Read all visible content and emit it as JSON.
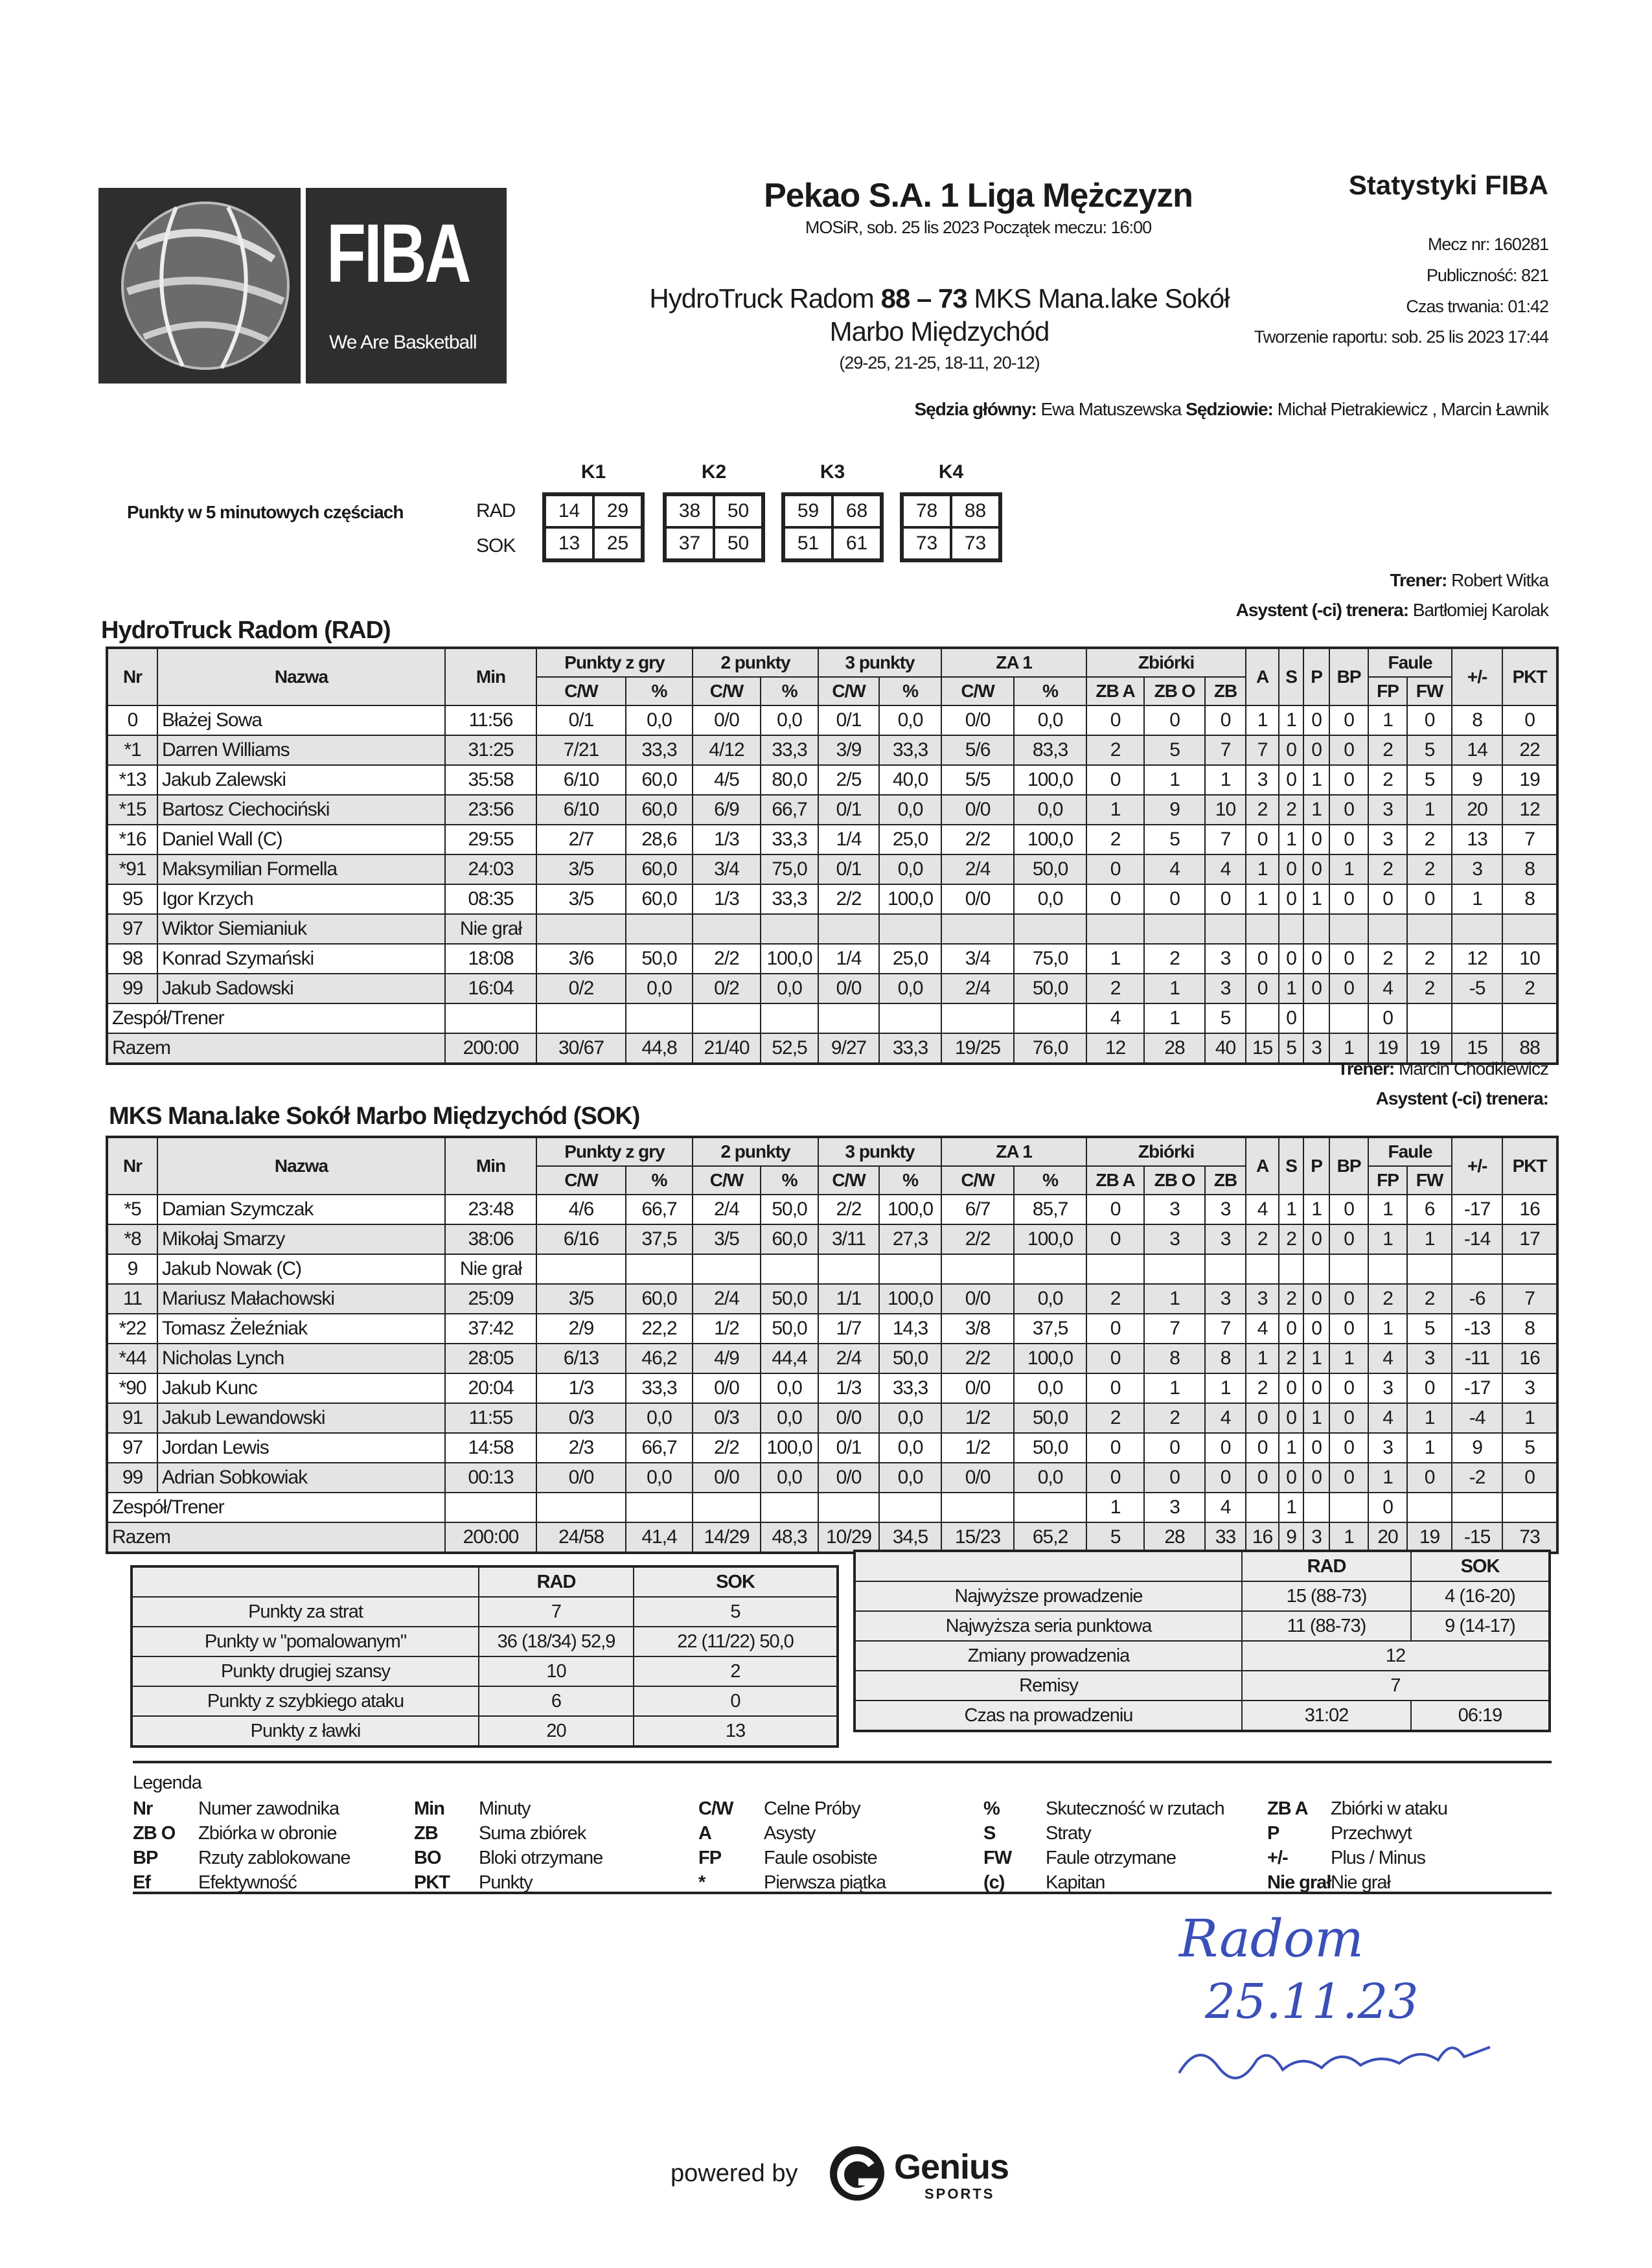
{
  "logo": {
    "brand": "FIBA",
    "tagline": "We Are Basketball"
  },
  "header": {
    "league": "Pekao S.A. 1 Liga Mężczyzn",
    "venue_line": "MOSiR, sob. 25 lis 2023 Początek meczu: 16:00",
    "home_team": "HydroTruck Radom",
    "score": "88 – 73",
    "away_team_part1": "MKS Mana.lake Sokół",
    "away_team_part2": "Marbo Międzychód",
    "quarters": "(29-25, 21-25, 18-11, 20-12)",
    "stats_title": "Statystyki FIBA",
    "match_no": "Mecz nr: 160281",
    "attendance": "Publiczność: 821",
    "duration": "Czas trwania: 01:42",
    "report_created": "Tworzenie raportu: sob. 25 lis 2023 17:44",
    "head_ref_label": "Sędzia główny:",
    "head_ref": "Ewa Matuszewska",
    "refs_label": "Sędziowie:",
    "refs": "Michał Pietrakiewicz , Marcin Ławnik"
  },
  "periods": {
    "label": "Punkty w 5 minutowych częściach",
    "teams": [
      "RAD",
      "SOK"
    ],
    "quarters": [
      {
        "name": "K1",
        "RAD": [
          "14",
          "29"
        ],
        "SOK": [
          "13",
          "25"
        ]
      },
      {
        "name": "K2",
        "RAD": [
          "38",
          "50"
        ],
        "SOK": [
          "37",
          "50"
        ]
      },
      {
        "name": "K3",
        "RAD": [
          "59",
          "68"
        ],
        "SOK": [
          "51",
          "61"
        ]
      },
      {
        "name": "K4",
        "RAD": [
          "78",
          "88"
        ],
        "SOK": [
          "73",
          "73"
        ]
      }
    ]
  },
  "columns": {
    "top": [
      "Nr",
      "Nazwa",
      "Min",
      "Punkty z gry",
      "2 punkty",
      "3 punkty",
      "ZA 1",
      "Zbiórki",
      "A",
      "S",
      "P",
      "BP",
      "Faule",
      "+/-",
      "PKT"
    ],
    "sub": [
      "C/W",
      "%",
      "C/W",
      "%",
      "C/W",
      "%",
      "C/W",
      "%",
      "ZB A",
      "ZB O",
      "ZB",
      "FP",
      "FW"
    ]
  },
  "teams": [
    {
      "name": "HydroTruck Radom (RAD)",
      "coach_label": "Trener:",
      "coach": "Robert Witka",
      "assistant_label": "Asystent (-ci) trenera:",
      "assistant": "Bartłomiej Karolak",
      "players": [
        [
          "0",
          "Błażej Sowa",
          "11:56",
          "0/1",
          "0,0",
          "0/0",
          "0,0",
          "0/1",
          "0,0",
          "0/0",
          "0,0",
          "0",
          "0",
          "0",
          "1",
          "1",
          "0",
          "0",
          "1",
          "0",
          "8",
          "0"
        ],
        [
          "*1",
          "Darren Williams",
          "31:25",
          "7/21",
          "33,3",
          "4/12",
          "33,3",
          "3/9",
          "33,3",
          "5/6",
          "83,3",
          "2",
          "5",
          "7",
          "7",
          "0",
          "0",
          "0",
          "2",
          "5",
          "14",
          "22"
        ],
        [
          "*13",
          "Jakub Zalewski",
          "35:58",
          "6/10",
          "60,0",
          "4/5",
          "80,0",
          "2/5",
          "40,0",
          "5/5",
          "100,0",
          "0",
          "1",
          "1",
          "3",
          "0",
          "1",
          "0",
          "2",
          "5",
          "9",
          "19"
        ],
        [
          "*15",
          "Bartosz Ciechociński",
          "23:56",
          "6/10",
          "60,0",
          "6/9",
          "66,7",
          "0/1",
          "0,0",
          "0/0",
          "0,0",
          "1",
          "9",
          "10",
          "2",
          "2",
          "1",
          "0",
          "3",
          "1",
          "20",
          "12"
        ],
        [
          "*16",
          "Daniel Wall (C)",
          "29:55",
          "2/7",
          "28,6",
          "1/3",
          "33,3",
          "1/4",
          "25,0",
          "2/2",
          "100,0",
          "2",
          "5",
          "7",
          "0",
          "1",
          "0",
          "0",
          "3",
          "2",
          "13",
          "7"
        ],
        [
          "*91",
          "Maksymilian Formella",
          "24:03",
          "3/5",
          "60,0",
          "3/4",
          "75,0",
          "0/1",
          "0,0",
          "2/4",
          "50,0",
          "0",
          "4",
          "4",
          "1",
          "0",
          "0",
          "1",
          "2",
          "2",
          "3",
          "8"
        ],
        [
          "95",
          "Igor Krzych",
          "08:35",
          "3/5",
          "60,0",
          "1/3",
          "33,3",
          "2/2",
          "100,0",
          "0/0",
          "0,0",
          "0",
          "0",
          "0",
          "1",
          "0",
          "1",
          "0",
          "0",
          "0",
          "1",
          "8"
        ],
        [
          "97",
          "Wiktor Siemianiuk",
          "Nie grał",
          "",
          "",
          "",
          "",
          "",
          "",
          "",
          "",
          "",
          "",
          "",
          "",
          "",
          "",
          "",
          "",
          "",
          "",
          ""
        ],
        [
          "98",
          "Konrad Szymański",
          "18:08",
          "3/6",
          "50,0",
          "2/2",
          "100,0",
          "1/4",
          "25,0",
          "3/4",
          "75,0",
          "1",
          "2",
          "3",
          "0",
          "0",
          "0",
          "0",
          "2",
          "2",
          "12",
          "10"
        ],
        [
          "99",
          "Jakub Sadowski",
          "16:04",
          "0/2",
          "0,0",
          "0/2",
          "0,0",
          "0/0",
          "0,0",
          "2/4",
          "50,0",
          "2",
          "1",
          "3",
          "0",
          "1",
          "0",
          "0",
          "4",
          "2",
          "-5",
          "2"
        ]
      ],
      "team_row_label": "Zespół/Trener",
      "team_row": [
        "",
        "",
        "",
        "",
        "",
        "",
        "",
        "",
        "",
        "4",
        "1",
        "5",
        "",
        "0",
        "",
        "",
        "0",
        "",
        "",
        ""
      ],
      "total_label": "Razem",
      "total": [
        "200:00",
        "30/67",
        "44,8",
        "21/40",
        "52,5",
        "9/27",
        "33,3",
        "19/25",
        "76,0",
        "12",
        "28",
        "40",
        "15",
        "5",
        "3",
        "1",
        "19",
        "19",
        "15",
        "88"
      ]
    },
    {
      "name": "MKS Mana.lake Sokół Marbo Międzychód (SOK)",
      "coach_label": "Trener:",
      "coach": "Marcin Chodkiewicz",
      "assistant_label": "Asystent (-ci) trenera:",
      "assistant": "",
      "players": [
        [
          "*5",
          "Damian Szymczak",
          "23:48",
          "4/6",
          "66,7",
          "2/4",
          "50,0",
          "2/2",
          "100,0",
          "6/7",
          "85,7",
          "0",
          "3",
          "3",
          "4",
          "1",
          "1",
          "0",
          "1",
          "6",
          "-17",
          "16"
        ],
        [
          "*8",
          "Mikołaj Smarzy",
          "38:06",
          "6/16",
          "37,5",
          "3/5",
          "60,0",
          "3/11",
          "27,3",
          "2/2",
          "100,0",
          "0",
          "3",
          "3",
          "2",
          "2",
          "0",
          "0",
          "1",
          "1",
          "-14",
          "17"
        ],
        [
          "9",
          "Jakub Nowak (C)",
          "Nie grał",
          "",
          "",
          "",
          "",
          "",
          "",
          "",
          "",
          "",
          "",
          "",
          "",
          "",
          "",
          "",
          "",
          "",
          "",
          ""
        ],
        [
          "11",
          "Mariusz Małachowski",
          "25:09",
          "3/5",
          "60,0",
          "2/4",
          "50,0",
          "1/1",
          "100,0",
          "0/0",
          "0,0",
          "2",
          "1",
          "3",
          "3",
          "2",
          "0",
          "0",
          "2",
          "2",
          "-6",
          "7"
        ],
        [
          "*22",
          "Tomasz Żeleźniak",
          "37:42",
          "2/9",
          "22,2",
          "1/2",
          "50,0",
          "1/7",
          "14,3",
          "3/8",
          "37,5",
          "0",
          "7",
          "7",
          "4",
          "0",
          "0",
          "0",
          "1",
          "5",
          "-13",
          "8"
        ],
        [
          "*44",
          "Nicholas Lynch",
          "28:05",
          "6/13",
          "46,2",
          "4/9",
          "44,4",
          "2/4",
          "50,0",
          "2/2",
          "100,0",
          "0",
          "8",
          "8",
          "1",
          "2",
          "1",
          "1",
          "4",
          "3",
          "-11",
          "16"
        ],
        [
          "*90",
          "Jakub Kunc",
          "20:04",
          "1/3",
          "33,3",
          "0/0",
          "0,0",
          "1/3",
          "33,3",
          "0/0",
          "0,0",
          "0",
          "1",
          "1",
          "2",
          "0",
          "0",
          "0",
          "3",
          "0",
          "-17",
          "3"
        ],
        [
          "91",
          "Jakub Lewandowski",
          "11:55",
          "0/3",
          "0,0",
          "0/3",
          "0,0",
          "0/0",
          "0,0",
          "1/2",
          "50,0",
          "2",
          "2",
          "4",
          "0",
          "0",
          "1",
          "0",
          "4",
          "1",
          "-4",
          "1"
        ],
        [
          "97",
          "Jordan Lewis",
          "14:58",
          "2/3",
          "66,7",
          "2/2",
          "100,0",
          "0/1",
          "0,0",
          "1/2",
          "50,0",
          "0",
          "0",
          "0",
          "0",
          "1",
          "0",
          "0",
          "3",
          "1",
          "9",
          "5"
        ],
        [
          "99",
          "Adrian Sobkowiak",
          "00:13",
          "0/0",
          "0,0",
          "0/0",
          "0,0",
          "0/0",
          "0,0",
          "0/0",
          "0,0",
          "0",
          "0",
          "0",
          "0",
          "0",
          "0",
          "0",
          "1",
          "0",
          "-2",
          "0"
        ]
      ],
      "team_row_label": "Zespół/Trener",
      "team_row": [
        "",
        "",
        "",
        "",
        "",
        "",
        "",
        "",
        "",
        "1",
        "3",
        "4",
        "",
        "1",
        "",
        "",
        "0",
        "",
        "",
        ""
      ],
      "total_label": "Razem",
      "total": [
        "200:00",
        "24/58",
        "41,4",
        "14/29",
        "48,3",
        "10/29",
        "34,5",
        "15/23",
        "65,2",
        "5",
        "28",
        "33",
        "16",
        "9",
        "3",
        "1",
        "20",
        "19",
        "-15",
        "73"
      ]
    }
  ],
  "summary_left": {
    "headers": [
      "",
      "RAD",
      "SOK"
    ],
    "rows": [
      [
        "Punkty za strat",
        "7",
        "5"
      ],
      [
        "Punkty w \"pomalowanym\"",
        "36 (18/34) 52,9",
        "22 (11/22) 50,0"
      ],
      [
        "Punkty drugiej szansy",
        "10",
        "2"
      ],
      [
        "Punkty z szybkiego ataku",
        "6",
        "0"
      ],
      [
        "Punkty z ławki",
        "20",
        "13"
      ]
    ]
  },
  "summary_right": {
    "headers": [
      "",
      "RAD",
      "SOK"
    ],
    "rows": [
      [
        "Najwyższe prowadzenie",
        "15 (88-73)",
        "4 (16-20)"
      ],
      [
        "Najwyższa seria punktowa",
        "11 (88-73)",
        "9 (14-17)"
      ],
      [
        "Zmiany prowadzenia",
        "12"
      ],
      [
        "Remisy",
        "7"
      ],
      [
        "Czas na prowadzeniu",
        "31:02",
        "06:19"
      ]
    ]
  },
  "legend": {
    "title": "Legenda",
    "columns": [
      [
        [
          "Nr",
          "Numer zawodnika"
        ],
        [
          "ZB O",
          "Zbiórka w obronie"
        ],
        [
          "BP",
          "Rzuty zablokowane"
        ],
        [
          "Ef",
          "Efektywność"
        ]
      ],
      [
        [
          "Min",
          "Minuty"
        ],
        [
          "ZB",
          "Suma zbiórek"
        ],
        [
          "BO",
          "Bloki otrzymane"
        ],
        [
          "PKT",
          "Punkty"
        ]
      ],
      [
        [
          "C/W",
          "Celne Próby"
        ],
        [
          "A",
          "Asysty"
        ],
        [
          "FP",
          "Faule osobiste"
        ],
        [
          "*",
          "Pierwsza piątka"
        ]
      ],
      [
        [
          "%",
          "Skuteczność w rzutach"
        ],
        [
          "S",
          "Straty"
        ],
        [
          "FW",
          "Faule otrzymane"
        ],
        [
          "(c)",
          "Kapitan"
        ]
      ],
      [
        [
          "ZB A",
          "Zbiórki w ataku"
        ],
        [
          "P",
          "Przechwyt"
        ],
        [
          "+/-",
          "Plus / Minus"
        ],
        [
          "Nie grał",
          "Nie grał"
        ]
      ]
    ]
  },
  "handwriting": {
    "place": "Radom",
    "date": "25.11.23",
    "ink_color": "#3a4fb8"
  },
  "footer": {
    "powered_by": "powered by",
    "brand": "Genius",
    "brand_sub": "SPORTS"
  }
}
